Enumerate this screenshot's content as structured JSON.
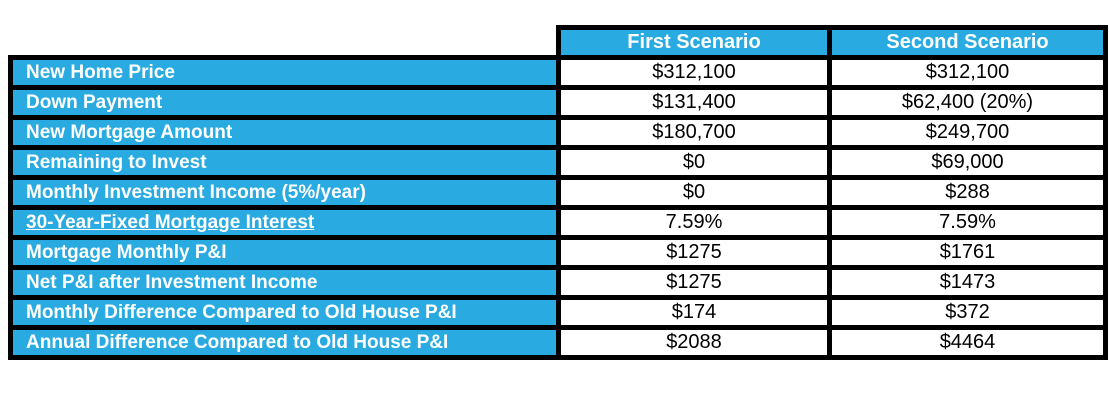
{
  "colors": {
    "accent": "#29ABE2",
    "border": "#000000",
    "header_text": "#FFFFFF",
    "value_text": "#000000",
    "background": "#FFFFFF"
  },
  "chart_data": {
    "type": "table",
    "columns": [
      "First Scenario",
      "Second Scenario"
    ],
    "rows": [
      {
        "label": "New Home Price",
        "values": [
          "$312,100",
          "$312,100"
        ],
        "underline": false
      },
      {
        "label": "Down Payment",
        "values": [
          "$131,400",
          "$62,400 (20%)"
        ],
        "underline": false
      },
      {
        "label": "New Mortgage Amount",
        "values": [
          "$180,700",
          "$249,700"
        ],
        "underline": false
      },
      {
        "label": "Remaining to Invest",
        "values": [
          "$0",
          "$69,000"
        ],
        "underline": false
      },
      {
        "label": "Monthly Investment Income (5%/year)",
        "values": [
          "$0",
          "$288"
        ],
        "underline": false
      },
      {
        "label": "30-Year-Fixed Mortgage Interest",
        "values": [
          "7.59%",
          "7.59%"
        ],
        "underline": true
      },
      {
        "label": "Mortgage Monthly P&I",
        "values": [
          "$1275",
          "$1761"
        ],
        "underline": false
      },
      {
        "label": "Net P&I after Investment Income",
        "values": [
          "$1275",
          "$1473"
        ],
        "underline": false
      },
      {
        "label": "Monthly Difference Compared to Old House P&I",
        "values": [
          "$174",
          "$372"
        ],
        "underline": false
      },
      {
        "label": "Annual Difference Compared to Old House P&I",
        "values": [
          "$2088",
          "$4464"
        ],
        "underline": false
      }
    ]
  }
}
